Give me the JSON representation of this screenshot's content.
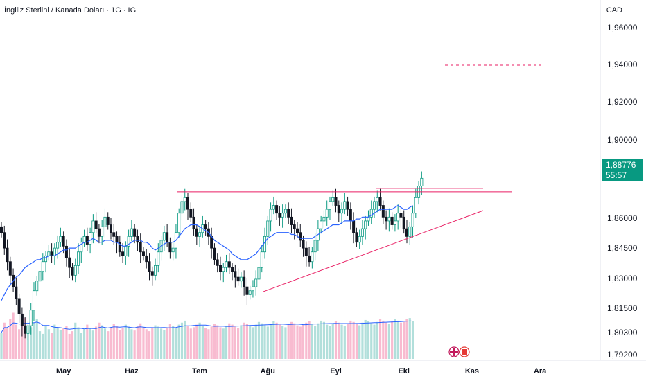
{
  "header": {
    "title": "İngiliz Sterlini / Kanada Doları · 1G · IG",
    "currency": "CAD"
  },
  "last_price": {
    "value": "1,88776",
    "countdown": "55:57",
    "color": "#089981"
  },
  "colors": {
    "up": "#089981",
    "down": "#131722",
    "ma": "#2962ff",
    "trend": "#e91e63",
    "vol_up": "#b2dfdb",
    "vol_down": "#f8bbd0"
  },
  "chart_data": {
    "type": "candlestick",
    "title": "İngiliz Sterlini / Kanada Doları · 1G · IG",
    "ylabel": "CAD",
    "ylim": [
      1.79,
      1.97
    ],
    "y_ticks": [
      "1,96000",
      "1,94000",
      "1,92000",
      "1,90000",
      "1,86000",
      "1,84500",
      "1,83000",
      "1,81500",
      "1,80300",
      "1,79200"
    ],
    "y_tick_values": [
      1.96,
      1.94,
      1.92,
      1.9,
      1.86,
      1.845,
      1.83,
      1.815,
      1.803,
      1.792
    ],
    "x_ticks": [
      "May",
      "Haz",
      "Tem",
      "Ağu",
      "Eyl",
      "Eki",
      "Kas",
      "Ara"
    ],
    "x_tick_index": [
      21,
      44,
      67,
      90,
      113,
      136,
      159,
      182
    ],
    "close_series": [
      1.86,
      1.852,
      1.845,
      1.838,
      1.832,
      1.826,
      1.818,
      1.812,
      1.808,
      1.812,
      1.82,
      1.83,
      1.835,
      1.84,
      1.845,
      1.848,
      1.85,
      1.848,
      1.852,
      1.855,
      1.858,
      1.853,
      1.847,
      1.842,
      1.838,
      1.843,
      1.85,
      1.855,
      1.858,
      1.854,
      1.86,
      1.866,
      1.862,
      1.858,
      1.863,
      1.868,
      1.864,
      1.86,
      1.858,
      1.855,
      1.85,
      1.848,
      1.853,
      1.858,
      1.862,
      1.858,
      1.855,
      1.85,
      1.848,
      1.845,
      1.84,
      1.838,
      1.843,
      1.85,
      1.856,
      1.86,
      1.855,
      1.85,
      1.852,
      1.86,
      1.87,
      1.876,
      1.878,
      1.872,
      1.868,
      1.862,
      1.858,
      1.86,
      1.864,
      1.862,
      1.858,
      1.852,
      1.846,
      1.843,
      1.84,
      1.842,
      1.845,
      1.842,
      1.84,
      1.837,
      1.835,
      1.837,
      1.832,
      1.828,
      1.83,
      1.832,
      1.836,
      1.842,
      1.85,
      1.858,
      1.866,
      1.872,
      1.874,
      1.87,
      1.868,
      1.87,
      1.872,
      1.868,
      1.864,
      1.862,
      1.86,
      1.856,
      1.852,
      1.848,
      1.845,
      1.85,
      1.856,
      1.862,
      1.866,
      1.868,
      1.872,
      1.876,
      1.878,
      1.874,
      1.87,
      1.872,
      1.876,
      1.872,
      1.866,
      1.86,
      1.855,
      1.858,
      1.862,
      1.866,
      1.868,
      1.872,
      1.876,
      1.878,
      1.874,
      1.868,
      1.866,
      1.868,
      1.864,
      1.866,
      1.87,
      1.868,
      1.862,
      1.858,
      1.863,
      1.87,
      1.878,
      1.884,
      1.888
    ],
    "ma_series": [
      1.825,
      1.828,
      1.831,
      1.833,
      1.835,
      1.837,
      1.838,
      1.84,
      1.842,
      1.843,
      1.844,
      1.845,
      1.846,
      1.846,
      1.847,
      1.847,
      1.848,
      1.848,
      1.848,
      1.849,
      1.85,
      1.851,
      1.851,
      1.852,
      1.852,
      1.852,
      1.853,
      1.854,
      1.855,
      1.855,
      1.856,
      1.857,
      1.856,
      1.855,
      1.855,
      1.856,
      1.856,
      1.856,
      1.855,
      1.855,
      1.854,
      1.853,
      1.853,
      1.854,
      1.855,
      1.856,
      1.856,
      1.856,
      1.855,
      1.855,
      1.854,
      1.852,
      1.851,
      1.852,
      1.853,
      1.854,
      1.855,
      1.855,
      1.855,
      1.856,
      1.858,
      1.86,
      1.862,
      1.863,
      1.864,
      1.864,
      1.864,
      1.863,
      1.862,
      1.861,
      1.86,
      1.858,
      1.856,
      1.855,
      1.854,
      1.853,
      1.852,
      1.851,
      1.849,
      1.848,
      1.847,
      1.846,
      1.846,
      1.846,
      1.847,
      1.848,
      1.849,
      1.851,
      1.853,
      1.855,
      1.857,
      1.858,
      1.859,
      1.86,
      1.86,
      1.86,
      1.86,
      1.86,
      1.859,
      1.859,
      1.858,
      1.857,
      1.857,
      1.857,
      1.857,
      1.857,
      1.858,
      1.859,
      1.86,
      1.861,
      1.862,
      1.863,
      1.864,
      1.864,
      1.864,
      1.865,
      1.866,
      1.866,
      1.866,
      1.866,
      1.867,
      1.867,
      1.868,
      1.868,
      1.868,
      1.869,
      1.87,
      1.871,
      1.872,
      1.872,
      1.872,
      1.872,
      1.872,
      1.873,
      1.874,
      1.873,
      1.872,
      1.872,
      1.873,
      1.874
    ],
    "volume_series": [
      40,
      55,
      48,
      60,
      70,
      52,
      45,
      58,
      62,
      50,
      48,
      55,
      60,
      42,
      38,
      50,
      45,
      40,
      52,
      48,
      44,
      46,
      50,
      38,
      42,
      55,
      48,
      40,
      45,
      52,
      47,
      43,
      49,
      55,
      51,
      46,
      42,
      48,
      53,
      50,
      44,
      47,
      52,
      49,
      45,
      43,
      50,
      54,
      48,
      45,
      42,
      47,
      51,
      49,
      46,
      44,
      48,
      53,
      50,
      47,
      52,
      55,
      58,
      50,
      46,
      48,
      52,
      55,
      50,
      47,
      45,
      49,
      53,
      51,
      48,
      46,
      50,
      54,
      52,
      49,
      47,
      51,
      55,
      53,
      50,
      48,
      52,
      56,
      54,
      51,
      49,
      53,
      57,
      55,
      52,
      50,
      48,
      53,
      56,
      54,
      51,
      49,
      52,
      55,
      57,
      53,
      50,
      54,
      58,
      56,
      52,
      50,
      53,
      57,
      55,
      52,
      50,
      54,
      58,
      56,
      53,
      51,
      55,
      59,
      57,
      54,
      52,
      56,
      60,
      58,
      55,
      53,
      57,
      61,
      58,
      55,
      56,
      60,
      62,
      57
    ],
    "resistance_level": 1.881,
    "target_level": 1.94,
    "support_line": [
      [
        94,
        1.825
      ],
      [
        170,
        1.863
      ]
    ],
    "last_value": 1.88776
  }
}
